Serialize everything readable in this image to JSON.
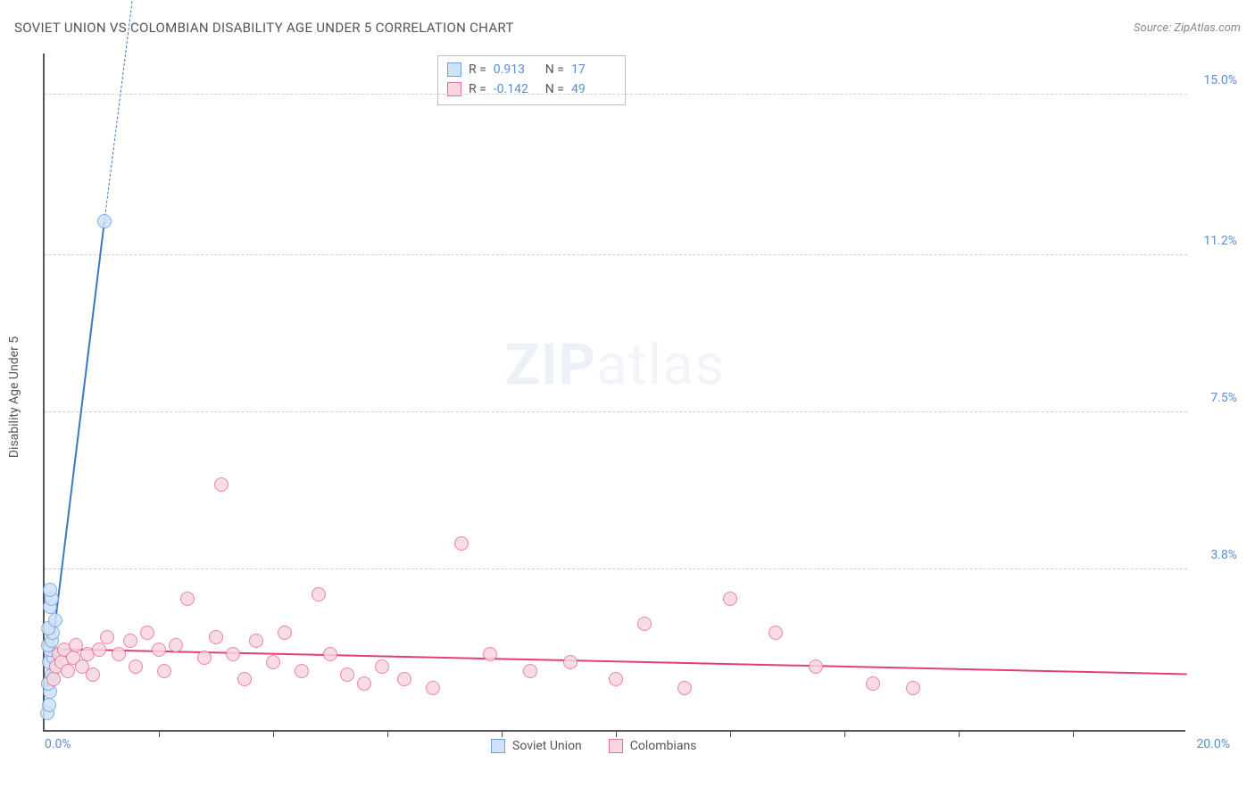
{
  "title": "SOVIET UNION VS COLOMBIAN DISABILITY AGE UNDER 5 CORRELATION CHART",
  "source": "Source: ZipAtlas.com",
  "watermark_zip": "ZIP",
  "watermark_atlas": "atlas",
  "chart": {
    "type": "scatter",
    "y_axis_label": "Disability Age Under 5",
    "xlim": [
      0,
      20
    ],
    "ylim": [
      0,
      16
    ],
    "x_origin_label": "0.0%",
    "x_max_label": "20.0%",
    "x_tick_positions": [
      2,
      4,
      6,
      8,
      10,
      12,
      14,
      16,
      18
    ],
    "y_ticks": [
      {
        "v": 3.8,
        "label": "3.8%"
      },
      {
        "v": 7.5,
        "label": "7.5%"
      },
      {
        "v": 11.2,
        "label": "11.2%"
      },
      {
        "v": 15.0,
        "label": "15.0%"
      }
    ],
    "background_color": "#ffffff",
    "grid_color": "#d0d0d0",
    "axis_color": "#555555",
    "tick_label_color": "#5b8dd6",
    "marker_radius": 8,
    "marker_border_width": 1.2,
    "series": [
      {
        "name": "Soviet Union",
        "fill": "#cfe2f7",
        "stroke": "#6fa4dd",
        "R": "0.913",
        "N": "17",
        "trend": {
          "x1": 0.05,
          "y1": 1.0,
          "x2": 1.05,
          "y2": 12.0,
          "dash_ext_x": 1.8,
          "dash_ext_y": 20.0,
          "color": "#3b78c4",
          "width": 2
        },
        "points": [
          [
            0.05,
            0.4
          ],
          [
            0.08,
            0.6
          ],
          [
            0.1,
            0.9
          ],
          [
            0.12,
            1.3
          ],
          [
            0.08,
            1.6
          ],
          [
            0.15,
            1.7
          ],
          [
            0.1,
            1.9
          ],
          [
            0.06,
            2.0
          ],
          [
            0.12,
            2.1
          ],
          [
            0.14,
            2.3
          ],
          [
            0.07,
            2.4
          ],
          [
            0.18,
            2.6
          ],
          [
            0.1,
            2.9
          ],
          [
            0.12,
            3.1
          ],
          [
            0.09,
            3.3
          ],
          [
            0.06,
            1.1
          ],
          [
            1.05,
            12.0
          ]
        ]
      },
      {
        "name": "Colombians",
        "fill": "#f7d6e0",
        "stroke": "#e86f9a",
        "R": "-0.142",
        "N": "49",
        "trend": {
          "x1": 0.0,
          "y1": 1.9,
          "x2": 20.0,
          "y2": 1.3,
          "color": "#e23d7a",
          "width": 2
        },
        "points": [
          [
            0.15,
            1.2
          ],
          [
            0.2,
            1.5
          ],
          [
            0.25,
            1.8
          ],
          [
            0.3,
            1.6
          ],
          [
            0.35,
            1.9
          ],
          [
            0.4,
            1.4
          ],
          [
            0.5,
            1.7
          ],
          [
            0.55,
            2.0
          ],
          [
            0.65,
            1.5
          ],
          [
            0.75,
            1.8
          ],
          [
            0.85,
            1.3
          ],
          [
            0.95,
            1.9
          ],
          [
            1.1,
            2.2
          ],
          [
            1.3,
            1.8
          ],
          [
            1.5,
            2.1
          ],
          [
            1.6,
            1.5
          ],
          [
            1.8,
            2.3
          ],
          [
            2.0,
            1.9
          ],
          [
            2.1,
            1.4
          ],
          [
            2.3,
            2.0
          ],
          [
            2.5,
            3.1
          ],
          [
            2.8,
            1.7
          ],
          [
            3.0,
            2.2
          ],
          [
            3.1,
            5.8
          ],
          [
            3.3,
            1.8
          ],
          [
            3.5,
            1.2
          ],
          [
            3.7,
            2.1
          ],
          [
            4.0,
            1.6
          ],
          [
            4.2,
            2.3
          ],
          [
            4.5,
            1.4
          ],
          [
            4.8,
            3.2
          ],
          [
            5.0,
            1.8
          ],
          [
            5.3,
            1.3
          ],
          [
            5.6,
            1.1
          ],
          [
            5.9,
            1.5
          ],
          [
            6.3,
            1.2
          ],
          [
            6.8,
            1.0
          ],
          [
            7.3,
            4.4
          ],
          [
            7.8,
            1.8
          ],
          [
            8.5,
            1.4
          ],
          [
            9.2,
            1.6
          ],
          [
            10.0,
            1.2
          ],
          [
            10.5,
            2.5
          ],
          [
            11.2,
            1.0
          ],
          [
            12.0,
            3.1
          ],
          [
            12.8,
            2.3
          ],
          [
            13.5,
            1.5
          ],
          [
            14.5,
            1.1
          ],
          [
            15.2,
            1.0
          ]
        ]
      }
    ]
  }
}
